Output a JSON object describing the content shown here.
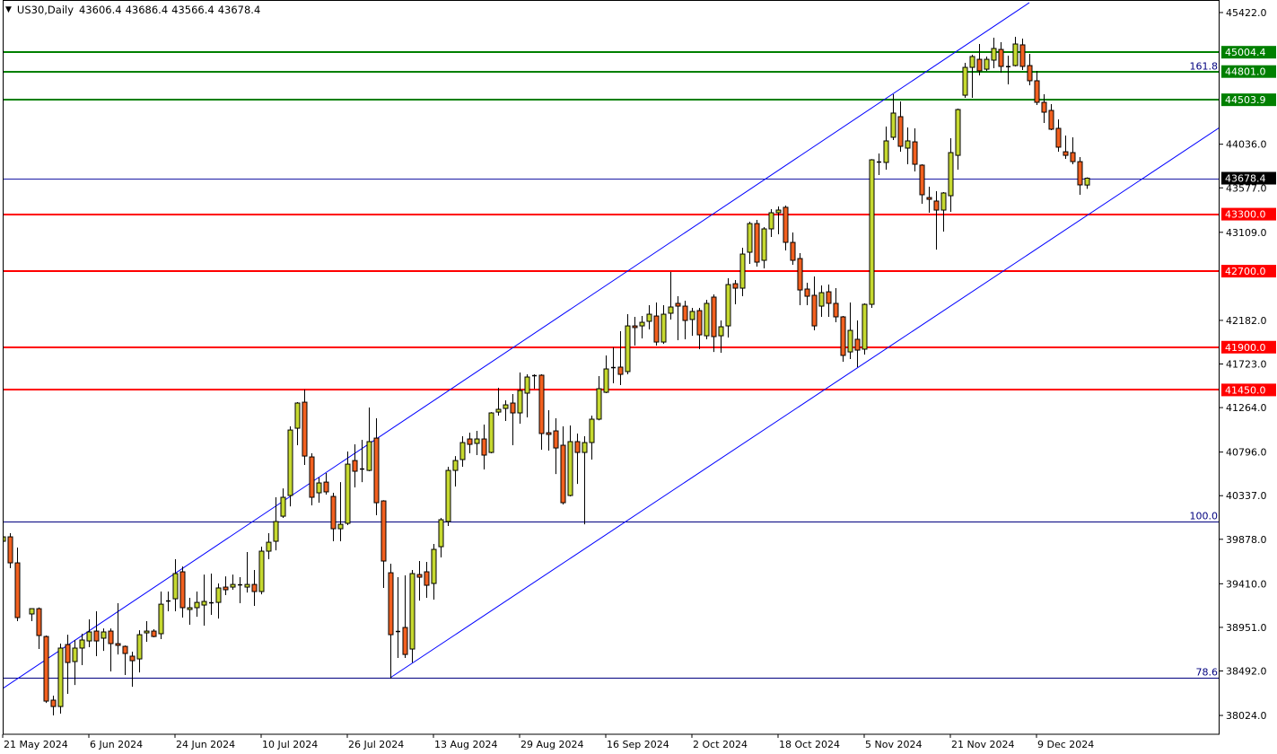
{
  "header": {
    "menu_icon": "triangle-down-icon",
    "symbol_timeframe": "US30,Daily",
    "open": "43606.4",
    "high": "43686.4",
    "low": "43566.4",
    "close": "43678.4"
  },
  "colors": {
    "bull_candle": "#c6d930",
    "bear_candle": "#f2601f",
    "candle_outline": "#000000",
    "resistance_level": "#008000",
    "support_level": "#ff0000",
    "current_price_line": "#1a1aa6",
    "current_price_label": "#000000",
    "fibonacci": "#00007f",
    "channel": "#0000ff",
    "background": "#ffffff"
  },
  "chart_data": {
    "type": "candlestick",
    "symbol": "US30",
    "timeframe": "Daily",
    "ylim": [
      37826,
      45554
    ],
    "grid": false,
    "candles": [
      [
        39857,
        39933,
        39810,
        39904
      ],
      [
        39904,
        39942,
        39574,
        39630
      ],
      [
        39630,
        39791,
        39016,
        39054
      ],
      null,
      [
        39092,
        39148,
        39016,
        39148
      ],
      [
        39148,
        39160,
        38723,
        38865
      ],
      [
        38855,
        38865,
        38156,
        38175
      ],
      [
        38185,
        38232,
        38024,
        38118
      ],
      [
        38118,
        38780,
        38043,
        38733
      ],
      [
        38770,
        38874,
        38251,
        38581
      ],
      [
        38591,
        38818,
        38345,
        38733
      ],
      [
        38733,
        38884,
        38553,
        38818
      ],
      [
        38808,
        39035,
        38742,
        38903
      ],
      [
        38912,
        39120,
        38648,
        38808
      ],
      [
        38837,
        38940,
        38704,
        38903
      ],
      [
        38912,
        38940,
        38487,
        38780
      ],
      [
        38780,
        39205,
        38666,
        38761
      ],
      [
        38751,
        38760,
        38449,
        38676
      ],
      [
        38648,
        38695,
        38326,
        38600
      ],
      [
        38619,
        38921,
        38477,
        38874
      ],
      [
        38893,
        39016,
        38799,
        38912
      ],
      [
        38912,
        38931,
        38846,
        38855
      ],
      [
        38884,
        39328,
        38827,
        39195
      ],
      [
        39224,
        39328,
        39120,
        39233
      ],
      [
        39252,
        39668,
        39120,
        39517
      ],
      [
        39536,
        39592,
        39054,
        39158
      ],
      [
        39139,
        39262,
        38978,
        39158
      ],
      [
        39158,
        39328,
        39063,
        39214
      ],
      [
        39186,
        39507,
        38969,
        39224
      ],
      [
        39205,
        39517,
        39082,
        39214
      ],
      [
        39214,
        39413,
        39044,
        39366
      ],
      [
        39375,
        39488,
        39290,
        39347
      ],
      [
        39375,
        39507,
        39347,
        39403
      ],
      [
        39394,
        39479,
        39205,
        39403
      ],
      [
        39375,
        39744,
        39318,
        39403
      ],
      [
        39403,
        39555,
        39177,
        39328
      ],
      [
        39328,
        39800,
        39299,
        39753
      ],
      [
        39753,
        39942,
        39668,
        39847
      ],
      [
        39857,
        40320,
        39762,
        40065
      ],
      [
        40121,
        40414,
        40103,
        40320
      ],
      [
        40339,
        41066,
        40225,
        41028
      ],
      [
        41047,
        41321,
        40868,
        41312
      ],
      [
        41321,
        41454,
        40660,
        40754
      ],
      [
        40745,
        40783,
        40235,
        40320
      ],
      [
        40367,
        40528,
        40263,
        40471
      ],
      [
        40480,
        40575,
        40348,
        40377
      ],
      [
        40329,
        40367,
        39857,
        39989
      ],
      [
        39989,
        40480,
        39857,
        40036
      ],
      [
        40046,
        40802,
        40027,
        40669
      ],
      [
        40707,
        40877,
        40424,
        40594
      ],
      [
        40613,
        40925,
        40480,
        40622
      ],
      [
        40603,
        41265,
        40594,
        40906
      ],
      [
        40943,
        41151,
        40131,
        40263
      ],
      [
        40282,
        40290,
        39366,
        39649
      ],
      [
        39526,
        39621,
        38411,
        38874
      ],
      [
        38903,
        39479,
        38629,
        38912
      ],
      [
        38950,
        39498,
        38629,
        38666
      ],
      [
        38723,
        39555,
        38581,
        39517
      ],
      [
        39507,
        39649,
        39233,
        39479
      ],
      [
        39536,
        39640,
        39262,
        39394
      ],
      [
        39413,
        39829,
        39243,
        39772
      ],
      [
        39800,
        40103,
        39687,
        40084
      ],
      [
        40065,
        40641,
        40018,
        40603
      ],
      [
        40603,
        40754,
        40433,
        40707
      ],
      [
        40717,
        40962,
        40641,
        40896
      ],
      [
        40934,
        41000,
        40783,
        40877
      ],
      [
        40887,
        41019,
        40764,
        40934
      ],
      [
        40934,
        41085,
        40613,
        40764
      ],
      [
        40792,
        41217,
        40783,
        41208
      ],
      [
        41217,
        41473,
        41180,
        41246
      ],
      [
        41255,
        41340,
        41123,
        41293
      ],
      [
        41312,
        41406,
        40868,
        41208
      ],
      [
        41208,
        41633,
        41095,
        41444
      ],
      [
        41416,
        41614,
        41161,
        41586
      ],
      [
        41595,
        41614,
        41463,
        41605
      ],
      [
        41605,
        41615,
        40821,
        40991
      ],
      [
        41000,
        41236,
        40811,
        40981
      ],
      [
        41019,
        41151,
        40565,
        40839
      ],
      [
        40868,
        41066,
        40244,
        40263
      ],
      [
        40339,
        41076,
        40330,
        40906
      ],
      [
        40906,
        40991,
        40461,
        40792
      ],
      [
        40792,
        40962,
        40036,
        40896
      ],
      [
        40896,
        41180,
        40717,
        41142
      ],
      [
        41142,
        41595,
        41130,
        41463
      ],
      [
        41425,
        41813,
        41416,
        41671
      ],
      [
        41680,
        41898,
        41520,
        41690
      ],
      [
        41690,
        42068,
        41501,
        41614
      ],
      [
        41643,
        42247,
        41614,
        42124
      ],
      [
        42124,
        42219,
        41917,
        42106
      ],
      [
        42124,
        42228,
        41992,
        42162
      ],
      [
        42172,
        42342,
        42087,
        42247
      ],
      [
        42228,
        42370,
        41917,
        41954
      ],
      [
        41954,
        42342,
        41935,
        42247
      ],
      [
        42257,
        42691,
        42191,
        42323
      ],
      [
        42361,
        42436,
        41973,
        42332
      ],
      [
        42332,
        42389,
        41983,
        42181
      ],
      [
        42191,
        42313,
        42020,
        42276
      ],
      [
        42285,
        42313,
        41879,
        42030
      ],
      [
        42020,
        42398,
        41983,
        42361
      ],
      [
        42427,
        42455,
        41850,
        42011
      ],
      [
        42020,
        42181,
        41841,
        42115
      ],
      [
        42124,
        42625,
        42002,
        42559
      ],
      [
        42568,
        42606,
        42351,
        42521
      ],
      [
        42521,
        42946,
        42436,
        42880
      ],
      [
        42899,
        43220,
        42776,
        43201
      ],
      [
        43201,
        43239,
        42748,
        42795
      ],
      [
        42814,
        43164,
        42729,
        43145
      ],
      [
        43145,
        43353,
        43060,
        43315
      ],
      [
        43315,
        43381,
        43088,
        43343
      ],
      [
        43372,
        43390,
        42918,
        43003
      ],
      [
        43003,
        43107,
        42767,
        42814
      ],
      [
        42833,
        42890,
        42342,
        42502
      ],
      [
        42512,
        42578,
        42342,
        42436
      ],
      [
        42446,
        42644,
        42077,
        42124
      ],
      [
        42332,
        42550,
        42219,
        42474
      ],
      [
        42483,
        42559,
        42219,
        42361
      ],
      [
        42361,
        42521,
        42162,
        42219
      ],
      [
        42219,
        42228,
        41747,
        41813
      ],
      [
        41850,
        42370,
        41775,
        42077
      ],
      [
        41983,
        42181,
        41690,
        41869
      ],
      [
        41879,
        42361,
        41822,
        42351
      ],
      [
        42351,
        43880,
        42313,
        43872
      ],
      [
        43853,
        43938,
        43712,
        43844
      ],
      [
        43844,
        44222,
        43768,
        44071
      ],
      [
        44109,
        44562,
        44080,
        44364
      ],
      [
        44326,
        44486,
        43957,
        44014
      ],
      [
        43995,
        44212,
        43825,
        44071
      ],
      [
        44061,
        44203,
        43749,
        43825
      ],
      [
        43816,
        43825,
        43409,
        43504
      ],
      [
        43475,
        43589,
        43315,
        43456
      ],
      [
        43438,
        43542,
        42927,
        43343
      ],
      [
        43343,
        43532,
        43116,
        43523
      ],
      [
        43494,
        44099,
        43324,
        43948
      ],
      [
        43919,
        44411,
        43768,
        44401
      ],
      [
        44552,
        44893,
        44524,
        44845
      ],
      [
        44845,
        44978,
        44524,
        44959
      ],
      [
        44930,
        45091,
        44760,
        44808
      ],
      [
        44826,
        44959,
        44808,
        44930
      ],
      [
        44921,
        45157,
        44836,
        45044
      ],
      [
        45034,
        45110,
        44789,
        44855
      ],
      [
        44855,
        44968,
        44666,
        44850
      ],
      [
        44864,
        45167,
        44855,
        45091
      ],
      [
        45082,
        45148,
        44817,
        44855
      ],
      [
        44864,
        44987,
        44656,
        44704
      ],
      [
        44704,
        44808,
        44449,
        44477
      ],
      [
        44477,
        44562,
        44260,
        44373
      ],
      [
        44392,
        44458,
        44184,
        44194
      ],
      [
        44203,
        44297,
        43957,
        44005
      ],
      [
        43957,
        44127,
        43882,
        43919
      ],
      [
        43948,
        44109,
        43825,
        43853
      ],
      [
        43853,
        43901,
        43504,
        43608
      ],
      [
        43606.4,
        43686.4,
        43566.4,
        43678.4
      ]
    ],
    "x_tick_labels": [
      "21 May 2024",
      "6 Jun 2024",
      "24 Jun 2024",
      "10 Jul 2024",
      "26 Jul 2024",
      "13 Aug 2024",
      "29 Aug 2024",
      "16 Sep 2024",
      "2 Oct 2024",
      "18 Oct 2024",
      "5 Nov 2024",
      "21 Nov 2024",
      "9 Dec 2024"
    ],
    "y_tick_labels": [
      "45422.0",
      "44036.0",
      "43577.0",
      "43109.0",
      "42182.0",
      "41723.0",
      "41264.0",
      "40796.0",
      "40337.0",
      "39878.0",
      "39410.0",
      "38951.0",
      "38492.0",
      "38024.0"
    ],
    "horizontal_levels": [
      {
        "price": 45004.4,
        "label": "45004.4",
        "kind": "resistance"
      },
      {
        "price": 44801.0,
        "label": "44801.0",
        "kind": "resistance"
      },
      {
        "price": 44503.9,
        "label": "44503.9",
        "kind": "resistance"
      },
      {
        "price": 43300.0,
        "label": "43300.0",
        "kind": "support"
      },
      {
        "price": 42700.0,
        "label": "42700.0",
        "kind": "support"
      },
      {
        "price": 41900.0,
        "label": "41900.0",
        "kind": "support"
      },
      {
        "price": 41450.0,
        "label": "41450.0",
        "kind": "support"
      }
    ],
    "current_price": {
      "price": 43678.4,
      "label": "43678.4"
    },
    "fibonacci_levels": [
      {
        "level": "161.8",
        "price": 44801
      },
      {
        "level": "100.0",
        "price": 40065
      },
      {
        "level": "78.6",
        "price": 38421
      }
    ],
    "channel_lines": [
      {
        "from_bar": 0,
        "from_price": 38307,
        "to_bar": 143,
        "to_price": 45526
      },
      {
        "from_bar": 54,
        "from_price": 38421,
        "to_bar": 169.5,
        "to_price": 44212
      }
    ]
  }
}
